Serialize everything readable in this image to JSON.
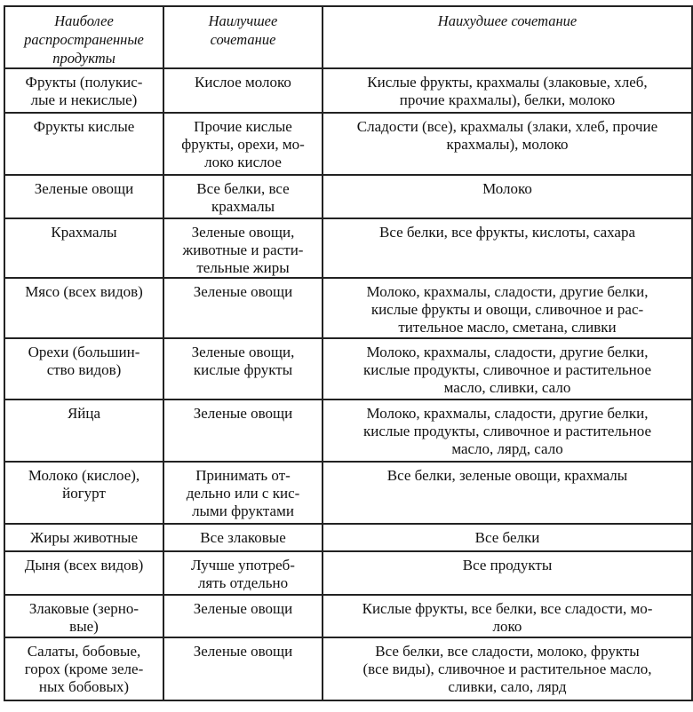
{
  "table": {
    "headers": [
      "Наиболее\nраспространенные\nпродукты",
      "Наилучшее\nсочетание",
      "Наихудшее сочетание"
    ],
    "rows": [
      [
        "Фрукты (полукис-\nлые и некислые)",
        "Кислое молоко",
        "Кислые фрукты, крахмалы (злаковые, хлеб,\nпрочие крахмалы), белки, молоко"
      ],
      [
        "Фрукты кислые",
        "Прочие кислые\nфрукты, орехи, мо-\nлоко кислое",
        "Сладости (все), крахмалы (злаки, хлеб, прочие\nкрахмалы), молоко"
      ],
      [
        "Зеленые овощи",
        "Все белки, все\nкрахмалы",
        "Молоко"
      ],
      [
        "Крахмалы",
        "Зеленые овощи,\nживотные и расти-\nтельные жиры",
        "Все белки, все фрукты, кислоты, сахара"
      ],
      [
        "Мясо (всех видов)",
        "Зеленые овощи",
        "Молоко, крахмалы, сладости, другие белки,\nкислые фрукты и овощи, сливочное и рас-\nтительное масло, сметана, сливки"
      ],
      [
        "Орехи (большин-\nство видов)",
        "Зеленые овощи,\nкислые фрукты",
        "Молоко, крахмалы, сладости, другие белки,\nкислые продукты, сливочное и растительное\nмасло, сливки, сало"
      ],
      [
        "Яйца",
        "Зеленые овощи",
        "Молоко, крахмалы, сладости, другие белки,\nкислые продукты, сливочное и растительное\nмасло, лярд, сало"
      ],
      [
        "Молоко (кислое),\nйогурт",
        "Принимать от-\nдельно или с кис-\nлыми фруктами",
        "Все белки, зеленые овощи, крахмалы"
      ],
      [
        "Жиры животные",
        "Все злаковые",
        "Все белки"
      ],
      [
        "Дыня (всех видов)",
        "Лучше употреб-\nлять отдельно",
        "Все продукты"
      ],
      [
        "Злаковые (зерно-\nвые)",
        "Зеленые овощи",
        "Кислые фрукты, все белки, все сладости, мо-\nлоко"
      ],
      [
        "Салаты, бобовые,\nгорох (кроме зеле-\nных бобовых)",
        "Зеленые овощи",
        "Все белки, все сладости, молоко, фрукты\n(все виды), сливочное и растительное масло,\nсливки, сало, лярд"
      ]
    ]
  }
}
